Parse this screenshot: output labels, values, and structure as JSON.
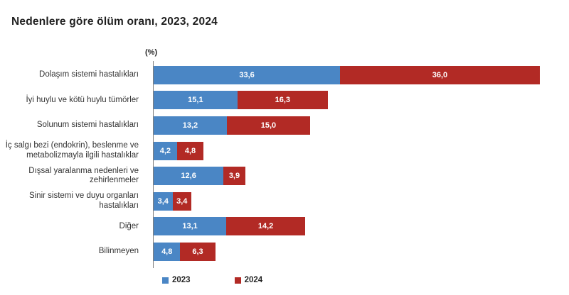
{
  "chart_data": {
    "type": "bar",
    "orientation": "horizontal",
    "stacked": true,
    "title": "Nedenlere göre ölüm oranı, 2023, 2024",
    "unit_label": "(%)",
    "xlabel": "",
    "ylabel": "",
    "axis_range": [
      0,
      70
    ],
    "grid": false,
    "legend_position": "bottom",
    "categories": [
      "Dolaşım sistemi hastalıkları",
      "İyi huylu ve kötü huylu tümörler",
      "Solunum sistemi hastalıkları",
      "İç salgı bezi (endokrin), beslenme ve metabolizmayla ilgili hastalıklar",
      "Dışsal yaralanma nedenleri ve zehirlenmeler",
      "Sinir sistemi ve duyu organları hastalıkları",
      "Diğer",
      "Bilinmeyen"
    ],
    "series": [
      {
        "name": "2023",
        "color": "#4a86c5",
        "values": [
          33.6,
          15.1,
          13.2,
          4.2,
          12.6,
          3.4,
          13.1,
          4.8
        ],
        "value_labels": [
          "33,6",
          "15,1",
          "13,2",
          "4,2",
          "12,6",
          "3,4",
          "13,1",
          "4,8"
        ]
      },
      {
        "name": "2024",
        "color": "#b22a25",
        "values": [
          36.0,
          16.3,
          15.0,
          4.8,
          3.9,
          3.4,
          14.2,
          6.3
        ],
        "value_labels": [
          "36,0",
          "16,3",
          "15,0",
          "4,8",
          "3,9",
          "3,4",
          "14,2",
          "6,3"
        ]
      }
    ]
  }
}
